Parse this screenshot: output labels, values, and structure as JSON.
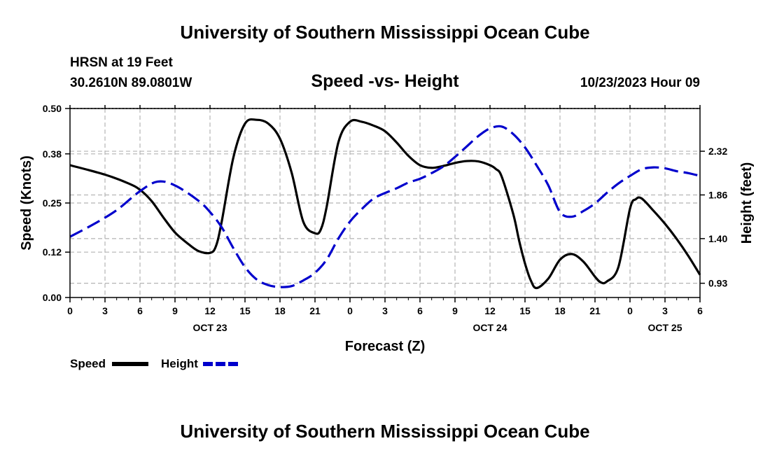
{
  "header": {
    "title": "University of Southern Mississippi Ocean Cube",
    "station": "HRSN at 19 Feet",
    "location": "30.2610N  89.0801W",
    "subtitle": "Speed -vs- Height",
    "datetime": "10/23/2023 Hour 09"
  },
  "footer": {
    "title": "University of Southern Mississippi Ocean Cube"
  },
  "chart_data": {
    "type": "line",
    "title": "Speed -vs- Height",
    "xlabel": "Forecast (Z)",
    "ylabel": "Speed (Knots)",
    "y2label": "Height (feet)",
    "xlim": [
      0,
      54
    ],
    "ylim": [
      0,
      0.5
    ],
    "y2lim": [
      0.78,
      2.77
    ],
    "x_ticks": [
      0,
      3,
      6,
      9,
      12,
      15,
      18,
      21,
      24,
      27,
      30,
      33,
      36,
      39,
      42,
      45,
      48,
      51,
      54
    ],
    "x_tick_labels": [
      "0",
      "3",
      "6",
      "9",
      "12",
      "15",
      "18",
      "21",
      "0",
      "3",
      "6",
      "9",
      "12",
      "15",
      "18",
      "21",
      "0",
      "3",
      "6"
    ],
    "date_labels": [
      {
        "x": 12,
        "label": "OCT 23"
      },
      {
        "x": 36,
        "label": "OCT 24"
      },
      {
        "x": 51,
        "label": "OCT 25"
      }
    ],
    "y_ticks": [
      0.0,
      0.12,
      0.25,
      0.38,
      0.5
    ],
    "y_tick_labels": [
      "0.00",
      "0.12",
      "0.25",
      "0.38",
      "0.50"
    ],
    "y2_ticks": [
      0.93,
      1.4,
      1.86,
      2.32
    ],
    "y2_tick_labels": [
      "0.93",
      "1.40",
      "1.86",
      "2.32"
    ],
    "grid": true,
    "series": [
      {
        "name": "Speed",
        "axis": "left",
        "color": "#000000",
        "style": "solid",
        "x": [
          0,
          3,
          5,
          6,
          7,
          8,
          9,
          10,
          11,
          12,
          12.5,
          13,
          14,
          15,
          16,
          17,
          18,
          19,
          20,
          21,
          21.5,
          22,
          23,
          24,
          25,
          26,
          27,
          28,
          29,
          30,
          31,
          32,
          33,
          34,
          35,
          36,
          36.5,
          37,
          38,
          38.5,
          39,
          39.5,
          40,
          41,
          42,
          43,
          44,
          45,
          45.5,
          46,
          47,
          48,
          48.5,
          49,
          50,
          51,
          52,
          53,
          54
        ],
        "y": [
          0.35,
          0.325,
          0.302,
          0.285,
          0.255,
          0.212,
          0.172,
          0.145,
          0.123,
          0.118,
          0.135,
          0.2,
          0.37,
          0.46,
          0.47,
          0.46,
          0.42,
          0.33,
          0.2,
          0.17,
          0.18,
          0.24,
          0.41,
          0.465,
          0.465,
          0.455,
          0.44,
          0.41,
          0.375,
          0.35,
          0.343,
          0.348,
          0.356,
          0.361,
          0.36,
          0.35,
          0.34,
          0.32,
          0.22,
          0.15,
          0.09,
          0.045,
          0.025,
          0.05,
          0.1,
          0.115,
          0.095,
          0.055,
          0.04,
          0.042,
          0.08,
          0.235,
          0.26,
          0.262,
          0.23,
          0.195,
          0.155,
          0.11,
          0.06
        ]
      },
      {
        "name": "Height",
        "axis": "right",
        "color": "#0000cc",
        "style": "dashed",
        "x": [
          0,
          2,
          4,
          6,
          7.5,
          9,
          11,
          12,
          13,
          14,
          15,
          16,
          17,
          18,
          19,
          20,
          21,
          22,
          23,
          24,
          25,
          26,
          27,
          28,
          29,
          30,
          31,
          32,
          33,
          34,
          35,
          36,
          37,
          38,
          39,
          40,
          41,
          42,
          43,
          44,
          45,
          46,
          47,
          48,
          49,
          50,
          51,
          52,
          53,
          54
        ],
        "y": [
          1.42,
          1.55,
          1.7,
          1.9,
          2.0,
          1.96,
          1.8,
          1.68,
          1.52,
          1.3,
          1.1,
          0.97,
          0.91,
          0.89,
          0.9,
          0.96,
          1.04,
          1.18,
          1.4,
          1.58,
          1.71,
          1.82,
          1.88,
          1.93,
          1.99,
          2.03,
          2.09,
          2.16,
          2.26,
          2.37,
          2.48,
          2.56,
          2.58,
          2.5,
          2.36,
          2.17,
          1.96,
          1.68,
          1.63,
          1.69,
          1.77,
          1.88,
          1.98,
          2.06,
          2.13,
          2.15,
          2.14,
          2.11,
          2.09,
          2.06
        ]
      }
    ],
    "legend": [
      {
        "label": "Speed",
        "color": "#000000",
        "style": "solid"
      },
      {
        "label": "Height",
        "color": "#0000cc",
        "style": "dashed"
      }
    ],
    "legend_position": "bottom-left"
  }
}
